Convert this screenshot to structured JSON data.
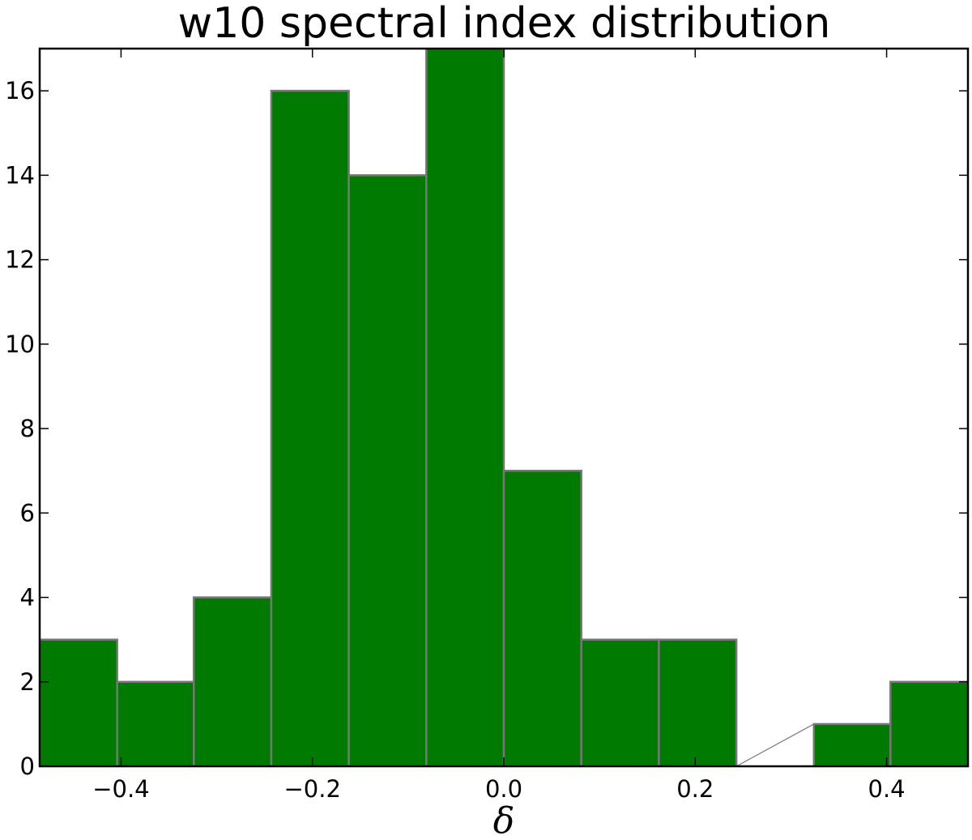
{
  "chart_data": {
    "type": "bar",
    "title": "w10 spectral index distribution",
    "xlabel": "δ",
    "ylabel": "",
    "bar_color": "#007a00",
    "edge_color": "#777777",
    "xlim": [
      -0.485,
      0.485
    ],
    "ylim": [
      0,
      17
    ],
    "bin_edges": [
      -0.485,
      -0.404,
      -0.324,
      -0.243,
      -0.162,
      -0.081,
      0.0,
      0.081,
      0.162,
      0.243,
      0.324,
      0.404,
      0.485
    ],
    "counts": [
      3,
      2,
      4,
      16,
      14,
      17,
      7,
      3,
      3,
      0,
      1,
      2
    ],
    "xticks": [
      -0.4,
      -0.2,
      0.0,
      0.2,
      0.4
    ],
    "xtick_labels": [
      "−0.4",
      "−0.2",
      "0.0",
      "0.2",
      "0.4"
    ],
    "yticks": [
      0,
      2,
      4,
      6,
      8,
      10,
      12,
      14,
      16
    ],
    "ytick_labels": [
      "0",
      "2",
      "4",
      "6",
      "8",
      "10",
      "12",
      "14",
      "16"
    ],
    "grid": false,
    "legend": "none"
  }
}
